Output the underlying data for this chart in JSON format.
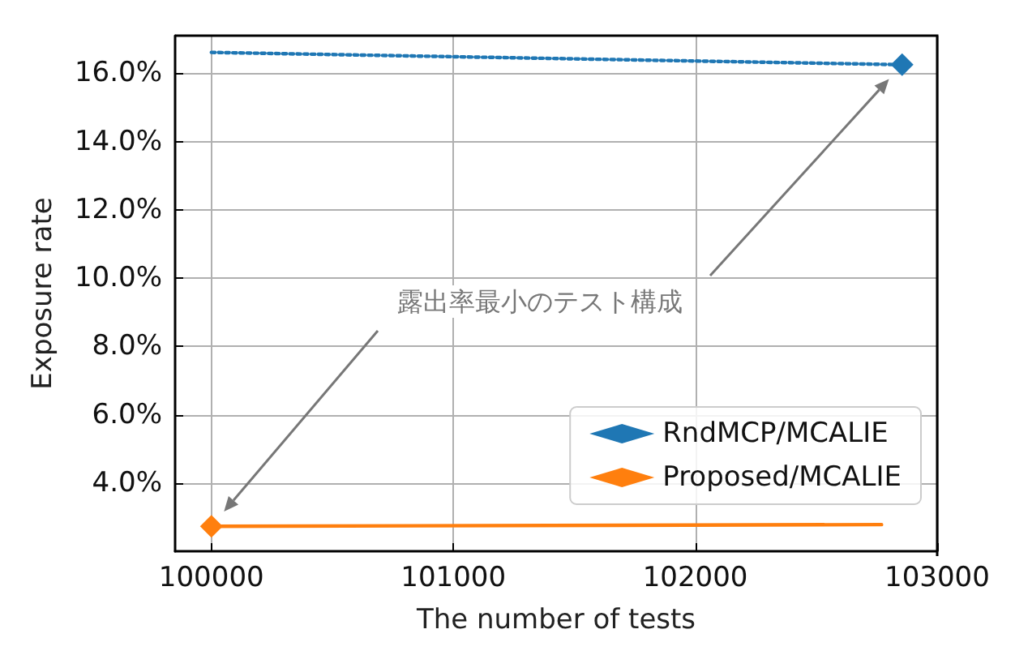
{
  "chart_data": {
    "type": "line",
    "xlabel": "The number of tests",
    "ylabel": "Exposure rate",
    "x": [
      100000,
      102855
    ],
    "series": [
      {
        "name": "RndMCP/MCALIE",
        "color": "#1f77b4",
        "line_style": "dotted",
        "values": [
          16.61,
          16.25
        ]
      },
      {
        "name": "Proposed/MCALIE",
        "color": "#ff7f0e",
        "line_style": "solid",
        "x": [
          100000,
          102770
        ],
        "values": [
          2.73,
          2.78
        ]
      }
    ],
    "annotations": [
      "露出率最小のテスト構成"
    ],
    "marker": "diamond",
    "xlim": [
      99850,
      103000
    ],
    "xticks": [
      100000,
      101000,
      102000,
      103000
    ],
    "ylim": [
      2.0,
      17.1
    ],
    "yticks": [
      {
        "value": 4,
        "label": "4.0%"
      },
      {
        "value": 6,
        "label": "6.0%"
      },
      {
        "value": 8,
        "label": "8.0%"
      },
      {
        "value": 10,
        "label": "10.0%"
      },
      {
        "value": 12,
        "label": "12.0%"
      },
      {
        "value": 14,
        "label": "14.0%"
      },
      {
        "value": 16,
        "label": "16.0%"
      }
    ],
    "grid": true,
    "legend": "bottom right"
  }
}
